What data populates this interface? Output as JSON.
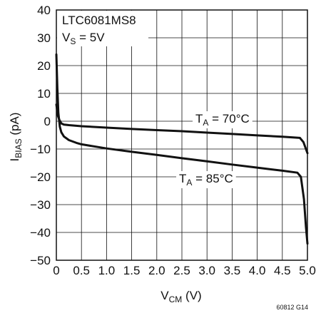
{
  "chart_data": {
    "type": "line",
    "device": "LTC6081MS8",
    "condition_main": "V",
    "condition_sub": "S",
    "condition_value": " = 5V",
    "xlabel_main": "V",
    "xlabel_sub": "CM",
    "xlabel_unit": " (V)",
    "ylabel_main": "I",
    "ylabel_sub": "BIAS",
    "ylabel_unit": " (pA)",
    "figure_code": "60812 G14",
    "xlim": [
      0,
      5
    ],
    "ylim": [
      -50,
      40
    ],
    "x_ticks": [
      "0",
      "0.5",
      "1.0",
      "1.5",
      "2.0",
      "2.5",
      "3.0",
      "3.5",
      "4.0",
      "4.5",
      "5.0"
    ],
    "y_ticks": [
      "40",
      "30",
      "20",
      "10",
      "0",
      "−10",
      "−20",
      "−30",
      "−40",
      "−50"
    ],
    "grid": true,
    "series": [
      {
        "name_main": "T",
        "name_sub": "A",
        "name_value": " = 70°C",
        "x": [
          0.0,
          0.03,
          0.06,
          0.1,
          0.15,
          0.25,
          0.5,
          1.0,
          1.5,
          2.0,
          2.5,
          3.0,
          3.5,
          4.0,
          4.5,
          4.85,
          4.92,
          4.97,
          5.0
        ],
        "y": [
          6,
          2,
          0.5,
          -0.8,
          -1.2,
          -1.4,
          -1.8,
          -2.3,
          -2.8,
          -3.2,
          -3.6,
          -4.1,
          -4.6,
          -5.1,
          -5.6,
          -6.0,
          -7.5,
          -10,
          -11.5
        ]
      },
      {
        "name_main": "T",
        "name_sub": "A",
        "name_value": " = 85°C",
        "x": [
          0.0,
          0.02,
          0.04,
          0.07,
          0.1,
          0.15,
          0.25,
          0.4,
          0.5,
          1.0,
          1.5,
          2.0,
          2.5,
          3.0,
          3.5,
          4.0,
          4.5,
          4.8,
          4.87,
          4.93,
          4.97,
          5.0
        ],
        "y": [
          24,
          12,
          3,
          -2,
          -4,
          -5.5,
          -6.8,
          -7.8,
          -8.3,
          -9.8,
          -11.0,
          -12.1,
          -13.3,
          -14.4,
          -15.6,
          -16.7,
          -17.8,
          -18.5,
          -20,
          -28,
          -38,
          -44
        ]
      }
    ]
  }
}
